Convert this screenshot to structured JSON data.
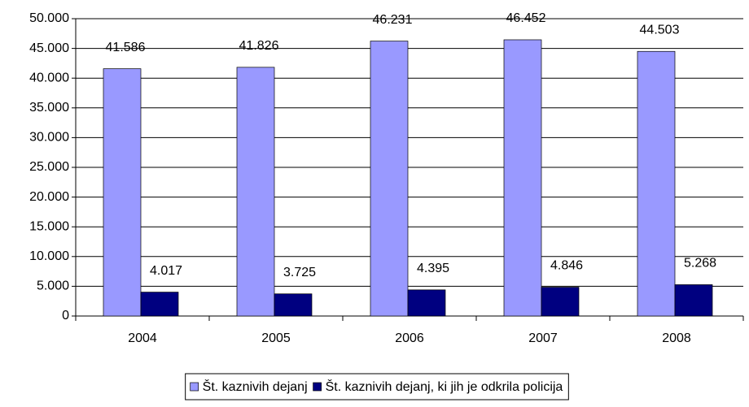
{
  "chart_data": {
    "type": "bar",
    "categories": [
      "2004",
      "2005",
      "2006",
      "2007",
      "2008"
    ],
    "series": [
      {
        "name": "Št. kaznivih dejanj",
        "color": "#9999ff",
        "values": [
          41586,
          41826,
          46231,
          46452,
          44503
        ],
        "value_labels": [
          "41.586",
          "41.826",
          "46.231",
          "46.452",
          "44.503"
        ]
      },
      {
        "name": "Št. kaznivih dejanj, ki jih je odkrila policija",
        "color": "#000080",
        "values": [
          4017,
          3725,
          4395,
          4846,
          5268
        ],
        "value_labels": [
          "4.017",
          "3.725",
          "4.395",
          "4.846",
          "5.268"
        ]
      }
    ],
    "ylim": [
      0,
      50000
    ],
    "yticks": [
      0,
      {
        "value": 5000,
        "label": "5.000"
      },
      {
        "value": 10000,
        "label": "10.000"
      },
      {
        "value": 15000,
        "label": "15.000"
      },
      {
        "value": 20000,
        "label": "20.000"
      },
      {
        "value": 25000,
        "label": "25.000"
      },
      {
        "value": 30000,
        "label": "30.000"
      },
      {
        "value": 35000,
        "label": "35.000"
      },
      {
        "value": 40000,
        "label": "40.000"
      },
      {
        "value": 45000,
        "label": "45.000"
      },
      {
        "value": 50000,
        "label": "50.000"
      }
    ],
    "grid": true,
    "legend": "bottom"
  }
}
